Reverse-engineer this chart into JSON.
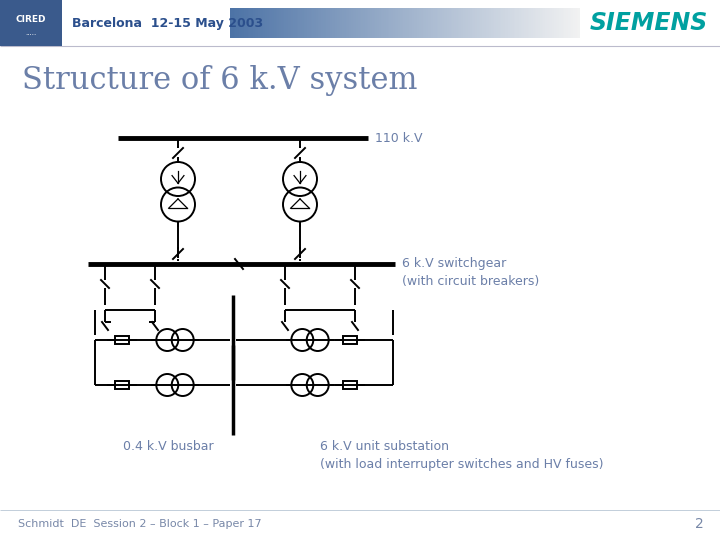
{
  "title": "Structure of 6 k.V system",
  "header_text": "Barcelona  12-15 May 2003",
  "siemens_text": "SIEMENS",
  "footer_text": "Schmidt  DE  Session 2 – Block 1 – Paper 17",
  "page_num": "2",
  "label_110kV": "110 k.V",
  "label_6kV_sw": "6 k.V switchgear\n(with circuit breakers)",
  "label_04kV": "0.4 k.V busbar",
  "label_6kV_sub": "6 k.V unit substation\n(with load interrupter switches and HV fuses)",
  "bg_color": "#ffffff",
  "text_color": "#6b7fa8",
  "diagram_color": "#000000",
  "siemens_color": "#00a0a0",
  "header_color": "#2b4f8c",
  "footer_color": "#7888a8",
  "cired_bg": "#3a5a8c",
  "grad_start": "#4a6fa0",
  "grad_end": "#e8eef5",
  "title_fontsize": 22,
  "header_fontsize": 9,
  "label_fontsize": 9,
  "footer_fontsize": 8
}
